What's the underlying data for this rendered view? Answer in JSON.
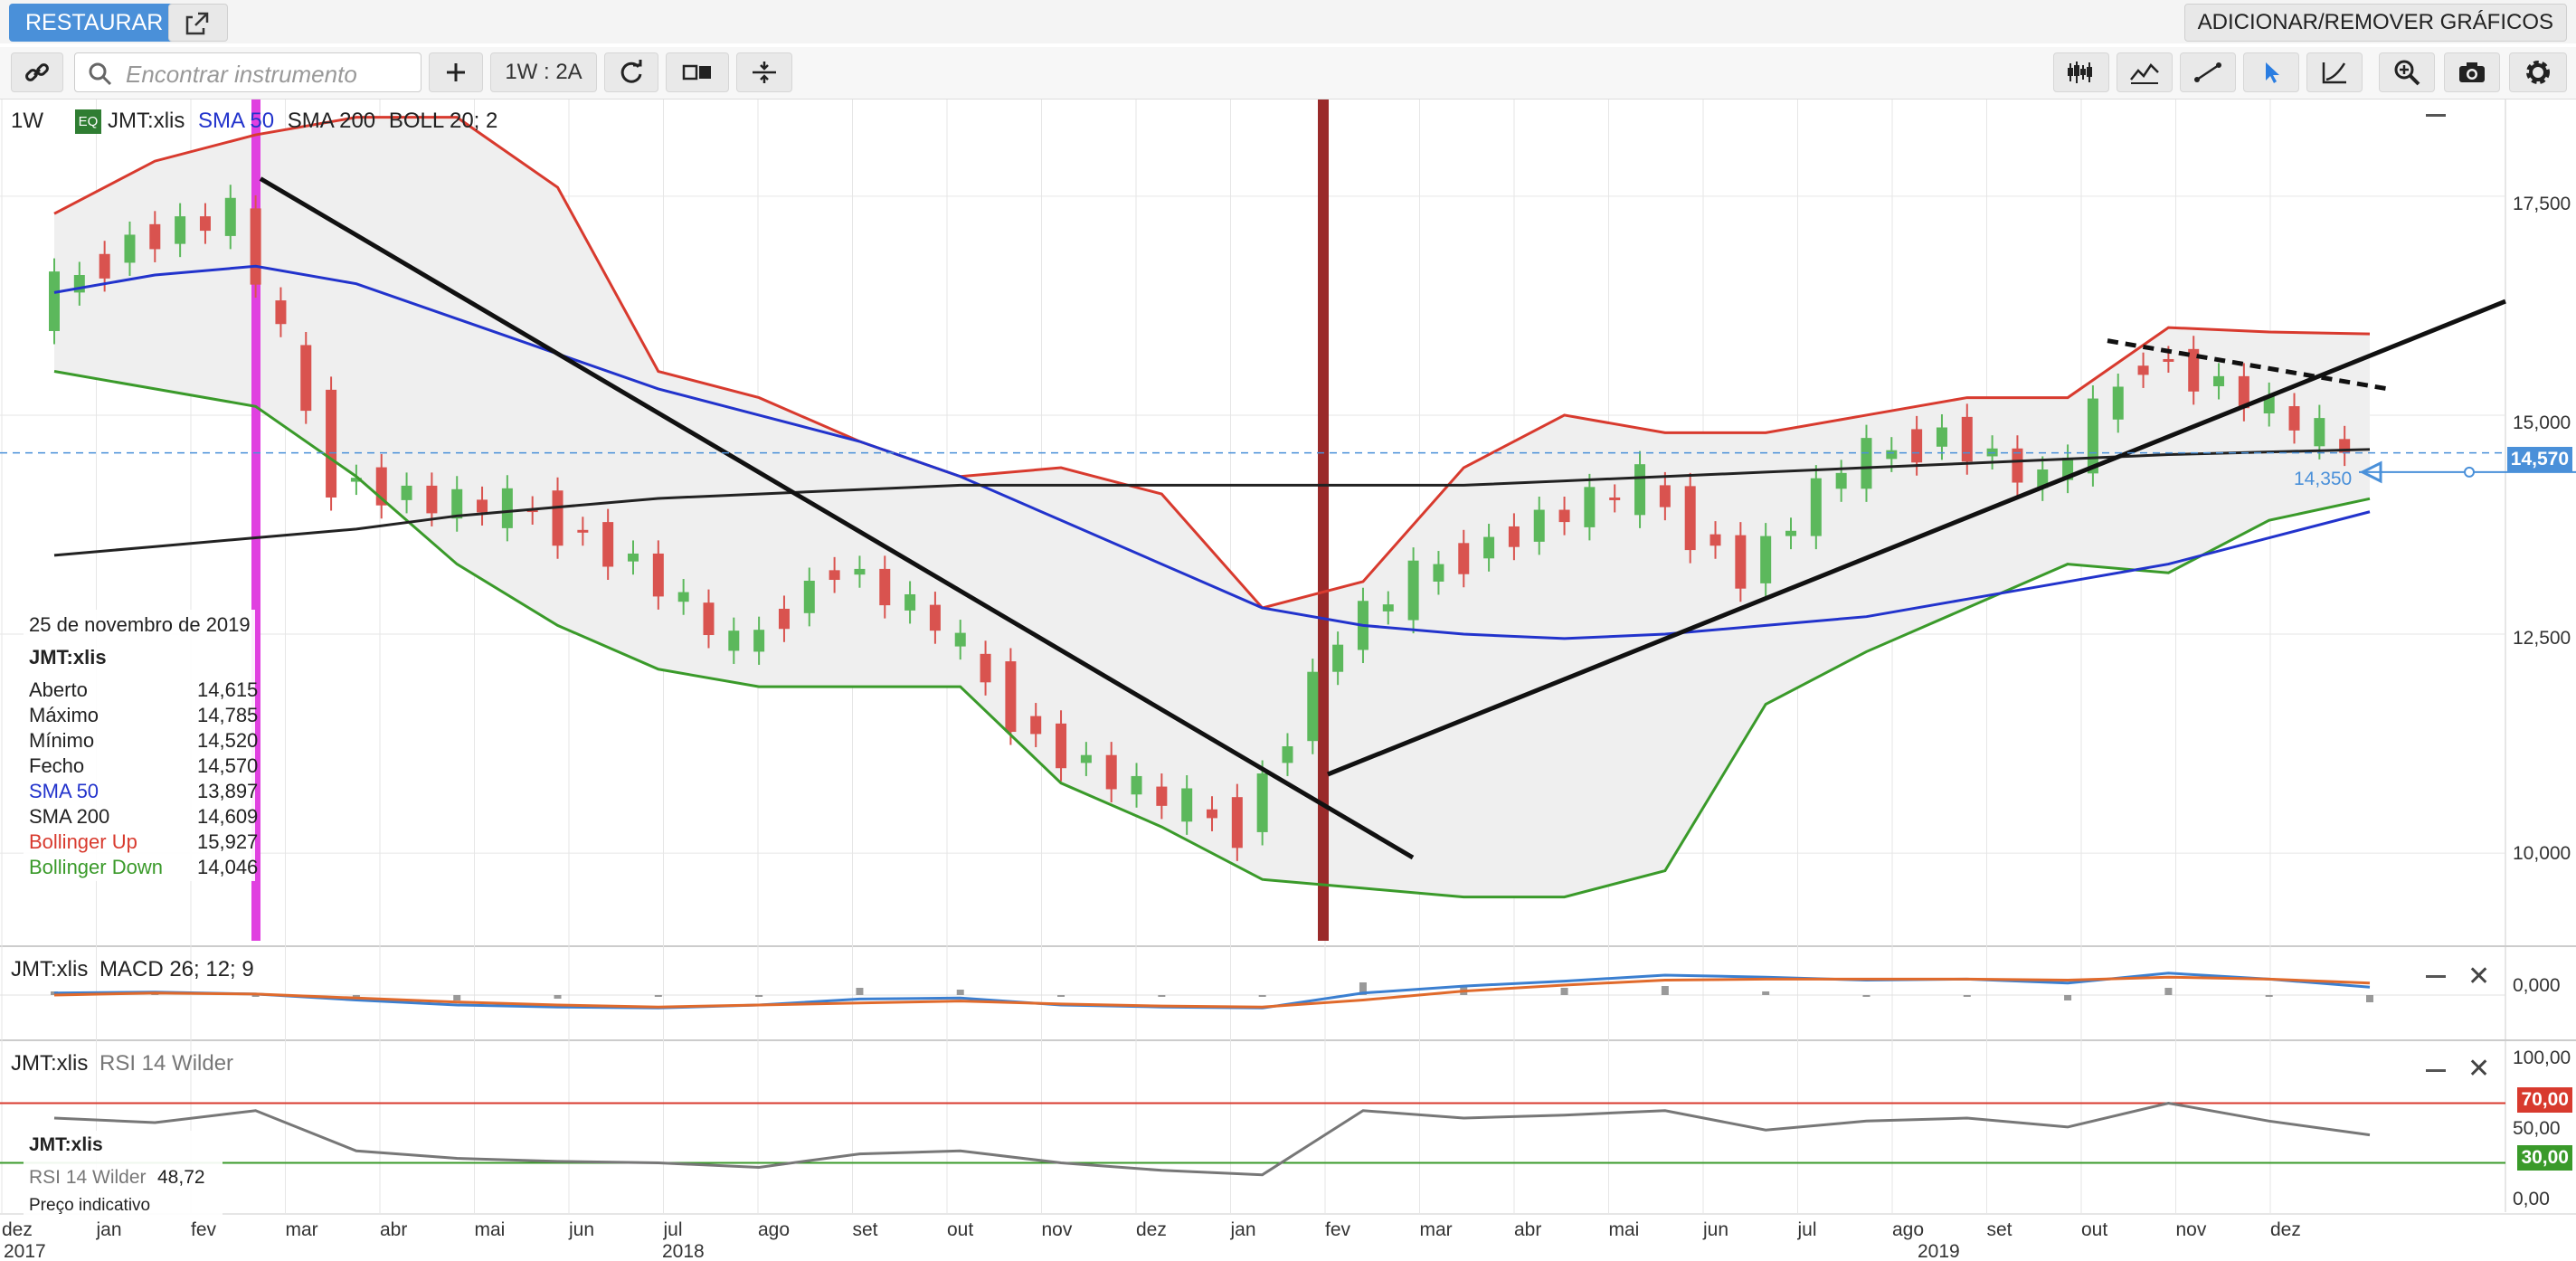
{
  "topbar": {
    "restore_label": "RESTAURAR",
    "add_remove_label": "ADICIONAR/REMOVER GRÁFICOS"
  },
  "toolbar": {
    "search_placeholder": "Encontrar instrumento",
    "period_label": "1W : 2A"
  },
  "main_panel": {
    "interval": "1W",
    "badge": "EQ",
    "instrument": "JMT:xlis",
    "sma50_label": "SMA 50",
    "sma200_label": "SMA 200",
    "boll_label": "BOLL 20; 2",
    "last_price": "14,570",
    "alert_price": "14,350",
    "y_ticks": [
      "17,500",
      "15,000",
      "12,500",
      "10,000"
    ]
  },
  "info_box": {
    "date": "25 de novembro de 2019",
    "instrument": "JMT:xlis",
    "rows": [
      {
        "label": "Aberto",
        "value": "14,615",
        "color": "#222222"
      },
      {
        "label": "Máximo",
        "value": "14,785",
        "color": "#222222"
      },
      {
        "label": "Mínimo",
        "value": "14,520",
        "color": "#222222"
      },
      {
        "label": "Fecho",
        "value": "14,570",
        "color": "#222222"
      },
      {
        "label": "SMA 50",
        "value": "13,897",
        "color": "#2233cc"
      },
      {
        "label": "SMA 200",
        "value": "14,609",
        "color": "#222222"
      },
      {
        "label": "Bollinger Up",
        "value": "15,927",
        "color": "#d83a2e"
      },
      {
        "label": "Bollinger Down",
        "value": "14,046",
        "color": "#3a9a2a"
      }
    ]
  },
  "macd_panel": {
    "instrument": "JMT:xlis",
    "label": "MACD 26; 12; 9",
    "y_tick": "0,000"
  },
  "rsi_panel": {
    "instrument": "JMT:xlis",
    "label": "RSI 14 Wilder",
    "info_instrument": "JMT:xlis",
    "info_label": "RSI 14 Wilder",
    "info_value": "48,72",
    "info_note": "Preço indicativo",
    "y_ticks": [
      "100,00",
      "50,00",
      "0,00"
    ],
    "level_70": "70,00",
    "level_30": "30,00"
  },
  "x_axis": {
    "months": [
      "dez",
      "jan",
      "fev",
      "mar",
      "abr",
      "mai",
      "jun",
      "jul",
      "ago",
      "set",
      "out",
      "nov",
      "dez",
      "jan",
      "fev",
      "mar",
      "abr",
      "mai",
      "jun",
      "jul",
      "ago",
      "set",
      "out",
      "nov",
      "dez"
    ],
    "years": [
      "2017",
      "2018",
      "2019"
    ]
  },
  "colors": {
    "accent": "#4a90d9",
    "bollinger_up": "#d83a2e",
    "bollinger_down": "#3a9a2a",
    "sma50": "#2233cc",
    "sma200": "#222222",
    "candle_up": "#5cb85c",
    "candle_down": "#d9534f",
    "macd_line": "#3b7fd0",
    "macd_signal": "#e06a2c",
    "marker_magenta": "#e040e0",
    "marker_brown": "#9a2a2a"
  },
  "chart_data": {
    "type": "line",
    "title": "",
    "xlabel": "",
    "ylabel": "",
    "ylim": [
      9000,
      18500
    ],
    "x": [
      "2017-12",
      "2018-01",
      "2018-02",
      "2018-03",
      "2018-04",
      "2018-05",
      "2018-06",
      "2018-07",
      "2018-08",
      "2018-09",
      "2018-10",
      "2018-11",
      "2018-12",
      "2019-01",
      "2019-02",
      "2019-03",
      "2019-04",
      "2019-05",
      "2019-06",
      "2019-07",
      "2019-08",
      "2019-09",
      "2019-10",
      "2019-11"
    ],
    "series": [
      {
        "name": "JMT:xlis",
        "values": [
          16200,
          17000,
          17300,
          14300,
          14000,
          13900,
          13300,
          12300,
          13300,
          12600,
          11300,
          10700,
          10300,
          12500,
          13300,
          13800,
          14200,
          13200,
          14400,
          14800,
          14200,
          15700,
          15200,
          14570
        ]
      },
      {
        "name": "SMA 50",
        "values": [
          16400,
          16600,
          16700,
          16500,
          16100,
          15700,
          15300,
          15000,
          14700,
          14300,
          13800,
          13300,
          12800,
          12600,
          12500,
          12450,
          12500,
          12600,
          12700,
          12900,
          13100,
          13300,
          13600,
          13897
        ]
      },
      {
        "name": "SMA 200",
        "values": [
          13400,
          13500,
          13600,
          13700,
          13850,
          13950,
          14050,
          14100,
          14150,
          14200,
          14200,
          14200,
          14200,
          14200,
          14200,
          14250,
          14300,
          14350,
          14400,
          14450,
          14500,
          14550,
          14580,
          14609
        ]
      },
      {
        "name": "Bollinger Up",
        "values": [
          17300,
          17900,
          18200,
          18400,
          18400,
          17600,
          15500,
          15200,
          14700,
          14300,
          14400,
          14100,
          12800,
          13100,
          14400,
          15000,
          14800,
          14800,
          15000,
          15200,
          15200,
          16000,
          15950,
          15927
        ]
      },
      {
        "name": "Bollinger Down",
        "values": [
          15500,
          15300,
          15100,
          14300,
          13300,
          12600,
          12100,
          11900,
          11900,
          11900,
          10800,
          10300,
          9700,
          9600,
          9500,
          9500,
          9800,
          11700,
          12300,
          12800,
          13300,
          13200,
          13800,
          14046
        ]
      }
    ]
  },
  "macd_data": {
    "type": "line",
    "series": [
      {
        "name": "MACD",
        "values": [
          0.02,
          0.03,
          0.01,
          -0.05,
          -0.1,
          -0.12,
          -0.13,
          -0.1,
          -0.04,
          -0.03,
          -0.1,
          -0.12,
          -0.13,
          0.02,
          0.09,
          0.14,
          0.2,
          0.18,
          0.15,
          0.16,
          0.12,
          0.22,
          0.16,
          0.08
        ]
      },
      {
        "name": "Signal",
        "values": [
          0.0,
          0.02,
          0.01,
          -0.03,
          -0.07,
          -0.1,
          -0.12,
          -0.1,
          -0.08,
          -0.06,
          -0.09,
          -0.11,
          -0.12,
          -0.05,
          0.04,
          0.1,
          0.15,
          0.16,
          0.16,
          0.16,
          0.15,
          0.18,
          0.16,
          0.12
        ]
      }
    ]
  },
  "rsi_data": {
    "type": "line",
    "values": [
      60,
      57,
      65,
      38,
      33,
      31,
      30,
      27,
      36,
      38,
      30,
      25,
      22,
      65,
      60,
      62,
      65,
      52,
      58,
      60,
      54,
      70,
      58,
      48.72
    ]
  }
}
